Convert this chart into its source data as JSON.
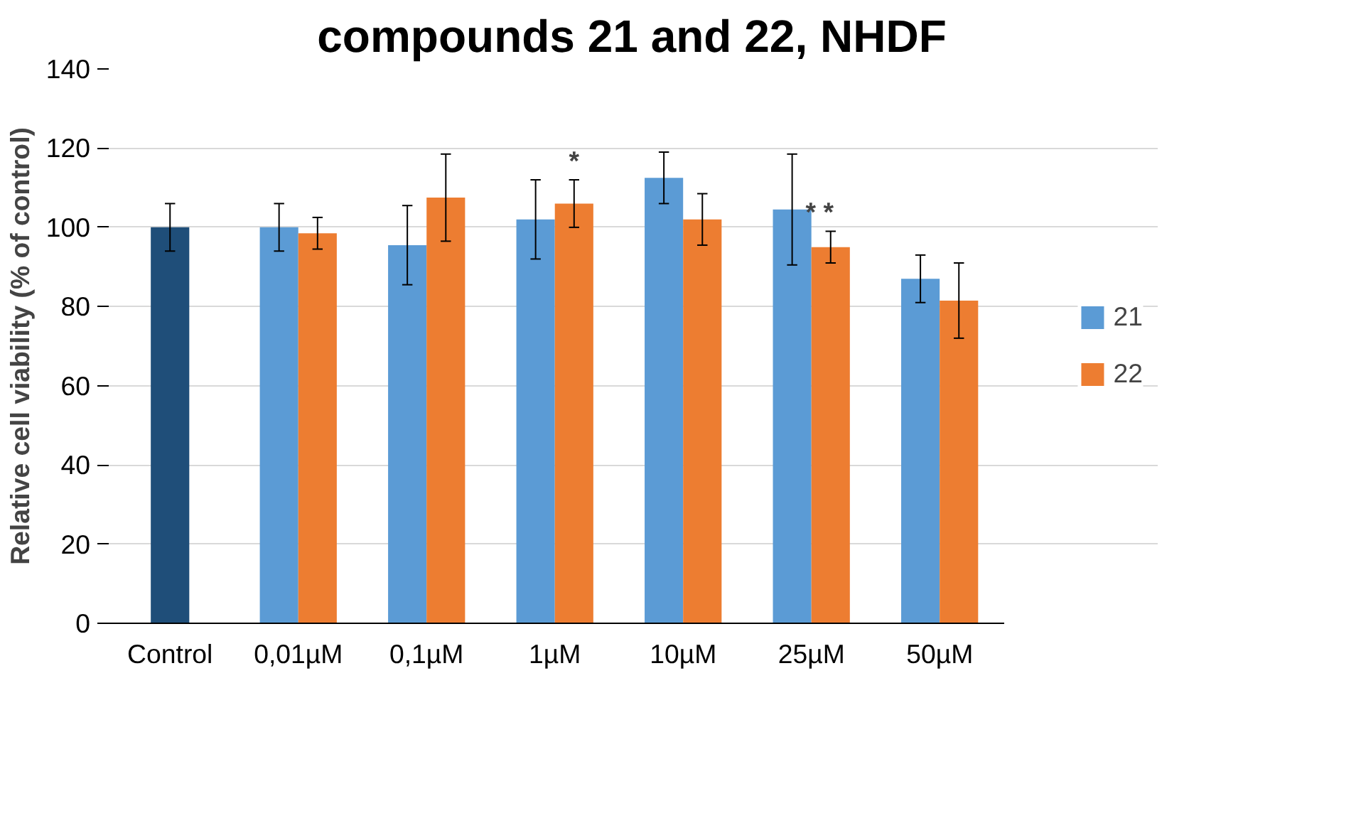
{
  "chart_data": {
    "type": "bar",
    "title": "compounds 21 and 22, NHDF",
    "ylabel": "Relative cell viability (% of control)",
    "categories": [
      "Control",
      "0,01µM",
      "0,1µM",
      "1µM",
      "10µM",
      "25µM",
      "50µM"
    ],
    "series": [
      {
        "color": "#1f4e79",
        "values": [
          100,
          null,
          null,
          null,
          null,
          null,
          null
        ],
        "errors": [
          6,
          null,
          null,
          null,
          null,
          null,
          null
        ]
      },
      {
        "name": "21",
        "color": "#5b9bd5",
        "values": [
          null,
          100,
          95.5,
          102,
          112.5,
          104.5,
          87
        ],
        "errors": [
          null,
          6,
          10,
          10,
          6.5,
          14,
          6
        ]
      },
      {
        "name": "22",
        "color": "#ed7d31",
        "values": [
          null,
          98.5,
          107.5,
          106,
          102,
          95,
          81.5
        ],
        "errors": [
          null,
          4,
          11,
          6,
          6.5,
          4,
          9.5
        ],
        "value_labels": [
          null,
          null,
          null,
          "*",
          null,
          "*    *",
          null
        ]
      }
    ],
    "ylim": [
      0,
      140
    ],
    "yticks": [
      0,
      20,
      40,
      60,
      80,
      100,
      120,
      140
    ],
    "grid": "y",
    "legend": "right"
  }
}
